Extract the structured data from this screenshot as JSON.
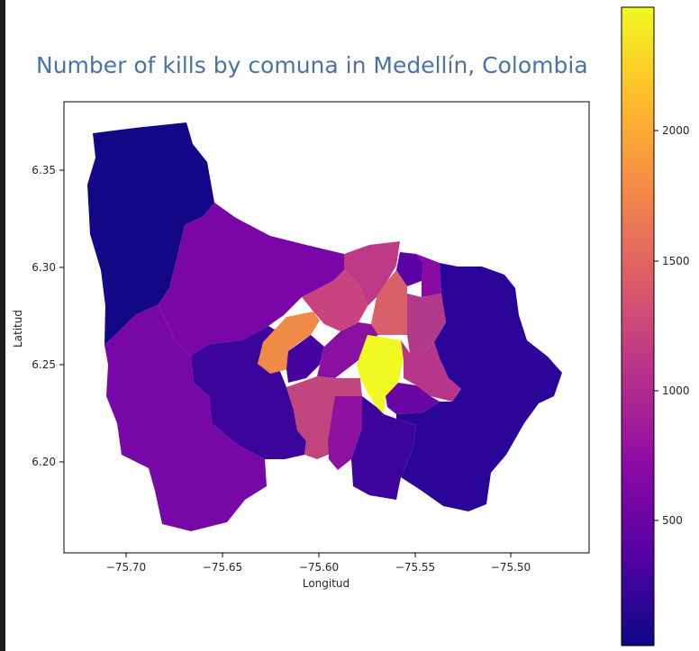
{
  "title": "Number of kills by comuna in Medellín, Colombia",
  "map": {
    "xlabel": "Longitud",
    "ylabel": "Latitud",
    "x_ticks": [
      "−75.70",
      "−75.65",
      "−75.60",
      "−75.55",
      "−75.50"
    ],
    "y_ticks": [
      "6.35",
      "6.30",
      "6.25",
      "6.20"
    ],
    "colormap": "plasma",
    "colormap_stops": [
      "#0d0887",
      "#5302a3",
      "#8b0aa5",
      "#b83289",
      "#db5c68",
      "#f48849",
      "#febd2a",
      "#f0f921"
    ],
    "colorbar_ticks": [
      "500",
      "1000",
      "1500",
      "2000"
    ],
    "value_range": [
      0,
      2450
    ]
  }
}
